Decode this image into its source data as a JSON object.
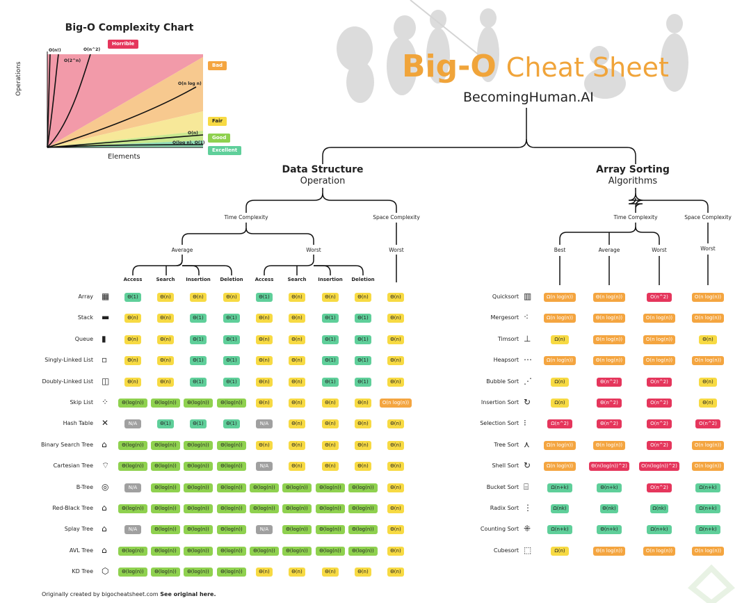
{
  "chart": {
    "title": "Big-O Complexity Chart",
    "xlabel": "Elements",
    "ylabel": "Operations",
    "legend": {
      "horrible": "Horrible",
      "bad": "Bad",
      "fair": "Fair",
      "good": "Good",
      "excellent": "Excellent"
    },
    "curves": {
      "n_fact": "O(n!)",
      "two_n": "O(2^n)",
      "n2": "O(n^2)",
      "nlogn": "O(n log n)",
      "n": "O(n)",
      "logn": "O(log n), O(1)"
    }
  },
  "header": {
    "title_bold": "Big-O",
    "title_light": "Cheat Sheet",
    "subtitle": "BecomingHuman.AI"
  },
  "ds": {
    "title": "Data Structure",
    "subtitle": "Operation",
    "time": "Time Complexity",
    "space": "Space Complexity",
    "average": "Average",
    "worst": "Worst",
    "space_worst": "Worst",
    "cols": [
      "Access",
      "Search",
      "Insertion",
      "Deletion",
      "Access",
      "Search",
      "Insertion",
      "Deletion"
    ],
    "rows": [
      {
        "name": "Array",
        "cells": [
          "Θ(1)",
          "Θ(n)",
          "Θ(n)",
          "Θ(n)",
          "Θ(1)",
          "Θ(n)",
          "Θ(n)",
          "Θ(n)",
          "Θ(n)"
        ]
      },
      {
        "name": "Stack",
        "cells": [
          "Θ(n)",
          "Θ(n)",
          "Θ(1)",
          "Θ(1)",
          "Θ(n)",
          "Θ(n)",
          "Θ(1)",
          "Θ(1)",
          "Θ(n)"
        ]
      },
      {
        "name": "Queue",
        "cells": [
          "Θ(n)",
          "Θ(n)",
          "Θ(1)",
          "Θ(1)",
          "Θ(n)",
          "Θ(n)",
          "Θ(1)",
          "Θ(1)",
          "Θ(n)"
        ]
      },
      {
        "name": "Singly-Linked List",
        "cells": [
          "Θ(n)",
          "Θ(n)",
          "Θ(1)",
          "Θ(1)",
          "Θ(n)",
          "Θ(n)",
          "Θ(1)",
          "Θ(1)",
          "Θ(n)"
        ]
      },
      {
        "name": "Doubly-Linked List",
        "cells": [
          "Θ(n)",
          "Θ(n)",
          "Θ(1)",
          "Θ(1)",
          "Θ(n)",
          "Θ(n)",
          "Θ(1)",
          "Θ(1)",
          "Θ(n)"
        ]
      },
      {
        "name": "Skip List",
        "cells": [
          "Θ(log(n))",
          "Θ(log(n))",
          "Θ(log(n))",
          "Θ(log(n))",
          "Θ(n)",
          "Θ(n)",
          "Θ(n)",
          "Θ(n)",
          "O(n log(n))"
        ]
      },
      {
        "name": "Hash Table",
        "cells": [
          "N/A",
          "Θ(1)",
          "Θ(1)",
          "Θ(1)",
          "N/A",
          "Θ(n)",
          "Θ(n)",
          "Θ(n)",
          "Θ(n)"
        ]
      },
      {
        "name": "Binary Search Tree",
        "cells": [
          "Θ(log(n))",
          "Θ(log(n))",
          "Θ(log(n))",
          "Θ(log(n))",
          "Θ(n)",
          "Θ(n)",
          "Θ(n)",
          "Θ(n)",
          "Θ(n)"
        ]
      },
      {
        "name": "Cartesian Tree",
        "cells": [
          "Θ(log(n))",
          "Θ(log(n))",
          "Θ(log(n))",
          "Θ(log(n))",
          "N/A",
          "Θ(n)",
          "Θ(n)",
          "Θ(n)",
          "Θ(n)"
        ]
      },
      {
        "name": "B-Tree",
        "cells": [
          "N/A",
          "Θ(log(n))",
          "Θ(log(n))",
          "Θ(log(n))",
          "Θ(log(n))",
          "Θ(log(n))",
          "Θ(log(n))",
          "Θ(log(n))",
          "Θ(n)"
        ]
      },
      {
        "name": "Red-Black Tree",
        "cells": [
          "Θ(log(n))",
          "Θ(log(n))",
          "Θ(log(n))",
          "Θ(log(n))",
          "Θ(log(n))",
          "Θ(log(n))",
          "Θ(log(n))",
          "Θ(log(n))",
          "Θ(n)"
        ]
      },
      {
        "name": "Splay Tree",
        "cells": [
          "N/A",
          "Θ(log(n))",
          "Θ(log(n))",
          "Θ(log(n))",
          "N/A",
          "Θ(log(n))",
          "Θ(log(n))",
          "Θ(log(n))",
          "Θ(n)"
        ]
      },
      {
        "name": "AVL Tree",
        "cells": [
          "Θ(log(n))",
          "Θ(log(n))",
          "Θ(log(n))",
          "Θ(log(n))",
          "Θ(log(n))",
          "Θ(log(n))",
          "Θ(log(n))",
          "Θ(log(n))",
          "Θ(n)"
        ]
      },
      {
        "name": "KD Tree",
        "cells": [
          "Θ(log(n))",
          "Θ(log(n))",
          "Θ(log(n))",
          "Θ(log(n))",
          "Θ(n)",
          "Θ(n)",
          "Θ(n)",
          "Θ(n)",
          "Θ(n)"
        ]
      }
    ],
    "colors": [
      [
        "green",
        "yellow",
        "yellow",
        "yellow",
        "green",
        "yellow",
        "yellow",
        "yellow",
        "yellow"
      ],
      [
        "yellow",
        "yellow",
        "green",
        "green",
        "yellow",
        "yellow",
        "green",
        "green",
        "yellow"
      ],
      [
        "yellow",
        "yellow",
        "green",
        "green",
        "yellow",
        "yellow",
        "green",
        "green",
        "yellow"
      ],
      [
        "yellow",
        "yellow",
        "green",
        "green",
        "yellow",
        "yellow",
        "green",
        "green",
        "yellow"
      ],
      [
        "yellow",
        "yellow",
        "green",
        "green",
        "yellow",
        "yellow",
        "green",
        "green",
        "yellow"
      ],
      [
        "lime",
        "lime",
        "lime",
        "lime",
        "yellow",
        "yellow",
        "yellow",
        "yellow",
        "orange"
      ],
      [
        "gray",
        "green",
        "green",
        "green",
        "gray",
        "yellow",
        "yellow",
        "yellow",
        "yellow"
      ],
      [
        "lime",
        "lime",
        "lime",
        "lime",
        "yellow",
        "yellow",
        "yellow",
        "yellow",
        "yellow"
      ],
      [
        "lime",
        "lime",
        "lime",
        "lime",
        "gray",
        "yellow",
        "yellow",
        "yellow",
        "yellow"
      ],
      [
        "gray",
        "lime",
        "lime",
        "lime",
        "lime",
        "lime",
        "lime",
        "lime",
        "yellow"
      ],
      [
        "lime",
        "lime",
        "lime",
        "lime",
        "lime",
        "lime",
        "lime",
        "lime",
        "yellow"
      ],
      [
        "gray",
        "lime",
        "lime",
        "lime",
        "gray",
        "lime",
        "lime",
        "lime",
        "yellow"
      ],
      [
        "lime",
        "lime",
        "lime",
        "lime",
        "lime",
        "lime",
        "lime",
        "lime",
        "yellow"
      ],
      [
        "lime",
        "lime",
        "lime",
        "lime",
        "yellow",
        "yellow",
        "yellow",
        "yellow",
        "yellow"
      ]
    ]
  },
  "sort": {
    "title": "Array Sorting",
    "subtitle": "Algorithms",
    "time": "Time Complexity",
    "space": "Space Complexity",
    "cols": [
      "Best",
      "Average",
      "Worst",
      "Worst"
    ],
    "rows": [
      {
        "name": "Quicksort",
        "cells": [
          "Ω(n log(n))",
          "Θ(n log(n))",
          "O(n^2)",
          "O(n log(n))"
        ]
      },
      {
        "name": "Mergesort",
        "cells": [
          "Ω(n log(n))",
          "Θ(n log(n))",
          "O(n log(n))",
          "O(n log(n))"
        ]
      },
      {
        "name": "Timsort",
        "cells": [
          "Ω(n)",
          "Θ(n log(n))",
          "O(n log(n))",
          "Θ(n)"
        ]
      },
      {
        "name": "Heapsort",
        "cells": [
          "Ω(n log(n))",
          "Θ(n log(n))",
          "O(n log(n))",
          "O(n log(n))"
        ]
      },
      {
        "name": "Bubble Sort",
        "cells": [
          "Ω(n)",
          "Θ(n^2)",
          "O(n^2)",
          "Θ(n)"
        ]
      },
      {
        "name": "Insertion Sort",
        "cells": [
          "Ω(n)",
          "Θ(n^2)",
          "O(n^2)",
          "Θ(n)"
        ]
      },
      {
        "name": "Selection Sort",
        "cells": [
          "Ω(n^2)",
          "Θ(n^2)",
          "O(n^2)",
          "O(n^2)"
        ]
      },
      {
        "name": "Tree Sort",
        "cells": [
          "Ω(n log(n))",
          "Θ(n log(n))",
          "O(n^2)",
          "O(n log(n))"
        ]
      },
      {
        "name": "Shell Sort",
        "cells": [
          "Ω(n log(n))",
          "Θ(n(log(n))^2)",
          "O(n(log(n))^2)",
          "O(n log(n))"
        ]
      },
      {
        "name": "Bucket Sort",
        "cells": [
          "Ω(n+k)",
          "Θ(n+k)",
          "O(n^2)",
          "Ω(n+k)"
        ]
      },
      {
        "name": "Radix Sort",
        "cells": [
          "Ω(nk)",
          "Θ(nk)",
          "Ω(nk)",
          "Ω(n+k)"
        ]
      },
      {
        "name": "Counting Sort",
        "cells": [
          "Ω(n+k)",
          "Θ(n+k)",
          "Ω(n+k)",
          "Ω(n+k)"
        ]
      },
      {
        "name": "Cubesort",
        "cells": [
          "Ω(n)",
          "Θ(n log(n))",
          "O(n log(n))",
          "O(n log(n))"
        ]
      }
    ],
    "colors": [
      [
        "orange",
        "orange",
        "red",
        "orange"
      ],
      [
        "orange",
        "orange",
        "orange",
        "orange"
      ],
      [
        "yellow",
        "orange",
        "orange",
        "yellow"
      ],
      [
        "orange",
        "orange",
        "orange",
        "orange"
      ],
      [
        "yellow",
        "red",
        "red",
        "yellow"
      ],
      [
        "yellow",
        "red",
        "red",
        "yellow"
      ],
      [
        "red",
        "red",
        "red",
        "red"
      ],
      [
        "orange",
        "orange",
        "red",
        "orange"
      ],
      [
        "orange",
        "red",
        "red",
        "orange"
      ],
      [
        "green",
        "green",
        "red",
        "green"
      ],
      [
        "green",
        "green",
        "green",
        "green"
      ],
      [
        "green",
        "green",
        "green",
        "green"
      ],
      [
        "yellow",
        "orange",
        "orange",
        "orange"
      ]
    ]
  },
  "footer": {
    "credit": "Originally created by bigocheatsheet.com",
    "link": "See original here."
  },
  "palette": {
    "green": "#5fcf9a",
    "lime": "#8fd14f",
    "yellow": "#f7da43",
    "orange": "#f4a540",
    "red": "#e5365c",
    "gray": "#a0a0a0",
    "accent": "#f0a43a"
  }
}
